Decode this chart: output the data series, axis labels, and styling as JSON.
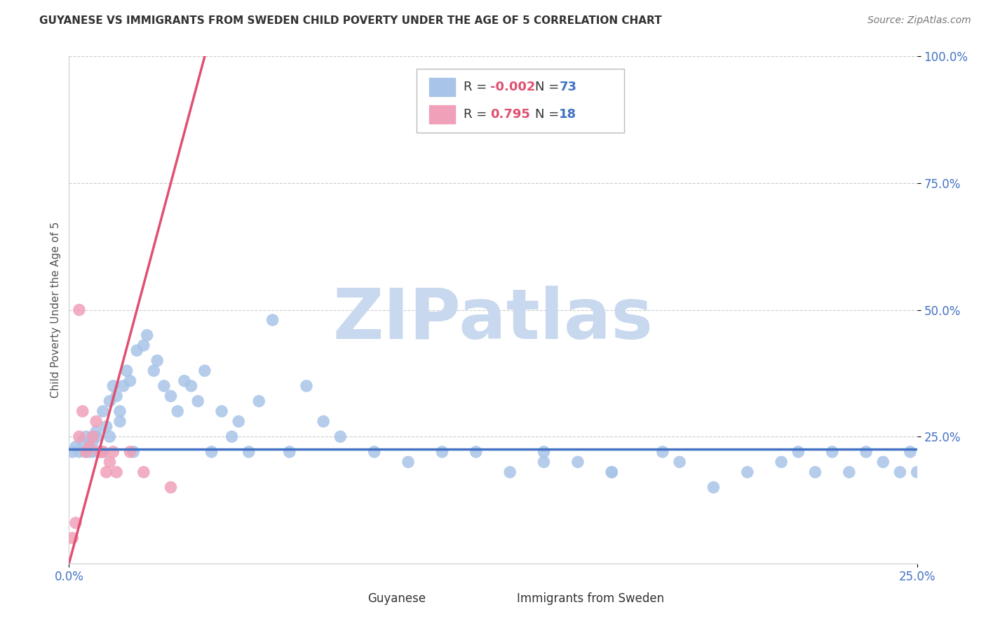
{
  "title": "GUYANESE VS IMMIGRANTS FROM SWEDEN CHILD POVERTY UNDER THE AGE OF 5 CORRELATION CHART",
  "source": "Source: ZipAtlas.com",
  "ylabel": "Child Poverty Under the Age of 5",
  "xlim": [
    0,
    0.25
  ],
  "ylim": [
    0,
    1.0
  ],
  "watermark": "ZIPatlas",
  "series1_color": "#a8c4e8",
  "series2_color": "#f0a0b8",
  "trendline1_color": "#4472c4",
  "trendline2_color": "#e05070",
  "background_color": "#ffffff",
  "title_fontsize": 11,
  "axis_label_fontsize": 11,
  "tick_fontsize": 12,
  "legend_fontsize": 13,
  "watermark_fontsize": 72,
  "watermark_color": "#c8d8ee",
  "source_fontsize": 10,
  "guyanese_x": [
    0.001,
    0.002,
    0.003,
    0.004,
    0.005,
    0.005,
    0.006,
    0.006,
    0.007,
    0.007,
    0.008,
    0.008,
    0.009,
    0.01,
    0.01,
    0.011,
    0.012,
    0.012,
    0.013,
    0.014,
    0.015,
    0.015,
    0.016,
    0.017,
    0.018,
    0.019,
    0.02,
    0.022,
    0.023,
    0.025,
    0.026,
    0.028,
    0.03,
    0.032,
    0.034,
    0.036,
    0.038,
    0.04,
    0.042,
    0.045,
    0.048,
    0.05,
    0.053,
    0.056,
    0.06,
    0.065,
    0.07,
    0.075,
    0.08,
    0.09,
    0.1,
    0.11,
    0.12,
    0.13,
    0.14,
    0.15,
    0.16,
    0.175,
    0.19,
    0.2,
    0.21,
    0.215,
    0.22,
    0.225,
    0.23,
    0.235,
    0.24,
    0.245,
    0.248,
    0.25,
    0.14,
    0.16,
    0.18
  ],
  "guyanese_y": [
    0.22,
    0.23,
    0.22,
    0.24,
    0.22,
    0.25,
    0.23,
    0.22,
    0.24,
    0.22,
    0.25,
    0.26,
    0.22,
    0.3,
    0.22,
    0.27,
    0.25,
    0.32,
    0.35,
    0.33,
    0.3,
    0.28,
    0.35,
    0.38,
    0.36,
    0.22,
    0.42,
    0.43,
    0.45,
    0.38,
    0.4,
    0.35,
    0.33,
    0.3,
    0.36,
    0.35,
    0.32,
    0.38,
    0.22,
    0.3,
    0.25,
    0.28,
    0.22,
    0.32,
    0.48,
    0.22,
    0.35,
    0.28,
    0.25,
    0.22,
    0.2,
    0.22,
    0.22,
    0.18,
    0.22,
    0.2,
    0.18,
    0.22,
    0.15,
    0.18,
    0.2,
    0.22,
    0.18,
    0.22,
    0.18,
    0.22,
    0.2,
    0.18,
    0.22,
    0.18,
    0.2,
    0.18,
    0.2
  ],
  "sweden_x": [
    0.001,
    0.002,
    0.003,
    0.003,
    0.004,
    0.005,
    0.006,
    0.007,
    0.008,
    0.009,
    0.01,
    0.011,
    0.012,
    0.013,
    0.014,
    0.018,
    0.022,
    0.03
  ],
  "sweden_y": [
    0.05,
    0.08,
    0.5,
    0.25,
    0.3,
    0.22,
    0.23,
    0.25,
    0.28,
    0.22,
    0.22,
    0.18,
    0.2,
    0.22,
    0.18,
    0.22,
    0.18,
    0.15
  ],
  "trendline_blue_x0": 0.0,
  "trendline_blue_y0": 0.225,
  "trendline_blue_x1": 0.25,
  "trendline_blue_y1": 0.225,
  "trendline_pink_x0": 0.0,
  "trendline_pink_y0": 0.0,
  "trendline_pink_x1": 0.04,
  "trendline_pink_y1": 1.0
}
